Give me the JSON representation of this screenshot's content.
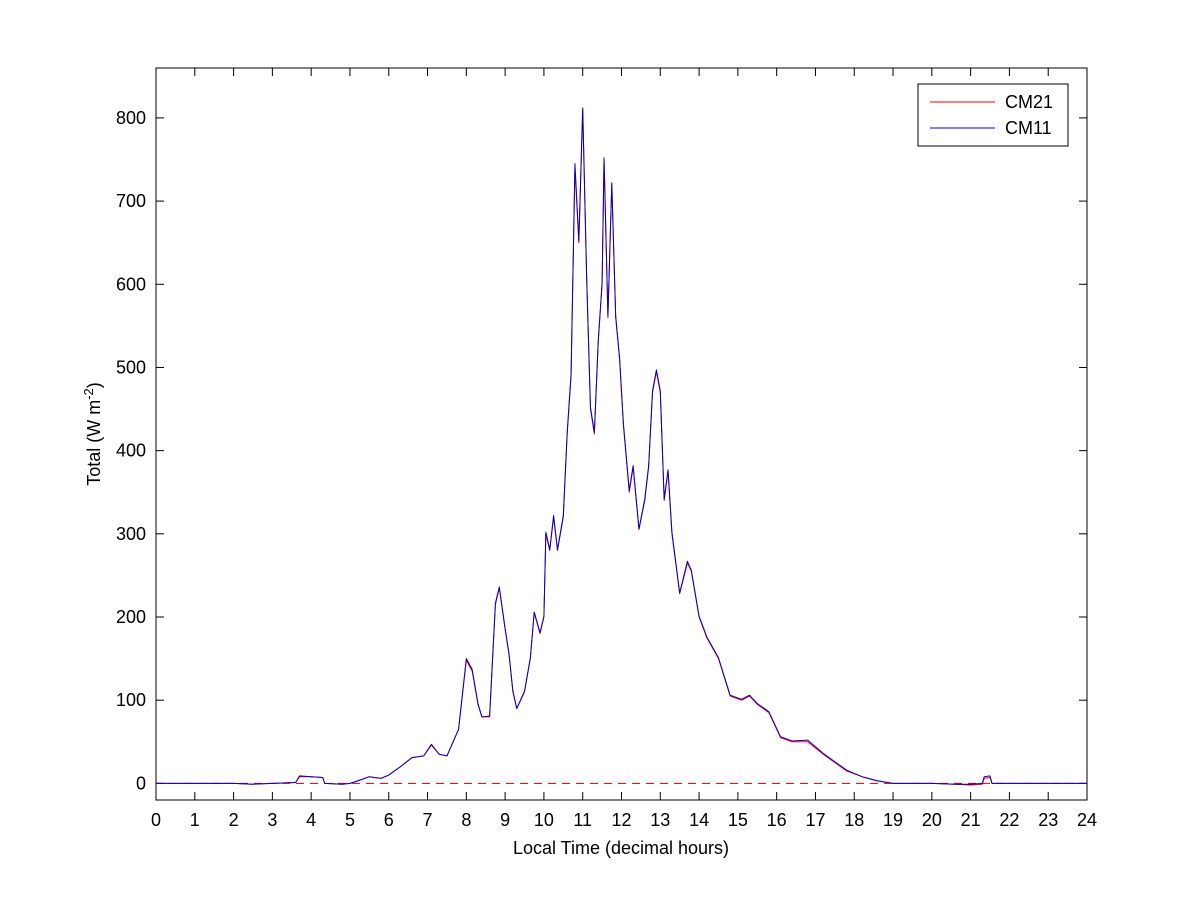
{
  "chart_data": {
    "type": "line",
    "title": "",
    "xlabel": "Local Time (decimal hours)",
    "ylabel": "Total (W m",
    "ylabel_sup": "-2",
    "ylabel_close": ")",
    "xlim": [
      0,
      24
    ],
    "ylim": [
      -20,
      860
    ],
    "xticks": [
      0,
      1,
      2,
      3,
      4,
      5,
      6,
      7,
      8,
      9,
      10,
      11,
      12,
      13,
      14,
      15,
      16,
      17,
      18,
      19,
      20,
      21,
      22,
      23,
      24
    ],
    "yticks": [
      0,
      100,
      200,
      300,
      400,
      500,
      600,
      700,
      800
    ],
    "grid": false,
    "legend_position": "top-right",
    "zero_reference_line": {
      "y": 0,
      "style": "dashed",
      "color": "#cc0000"
    },
    "series": [
      {
        "name": "CM21",
        "color": "#ff0000",
        "points": [
          [
            0,
            0
          ],
          [
            1,
            0
          ],
          [
            2,
            0
          ],
          [
            2.5,
            -1
          ],
          [
            3,
            0
          ],
          [
            3.6,
            1
          ],
          [
            3.7,
            8
          ],
          [
            4.0,
            8
          ],
          [
            4.3,
            7
          ],
          [
            4.35,
            0
          ],
          [
            4.8,
            -1
          ],
          [
            5.0,
            0
          ],
          [
            5.2,
            3
          ],
          [
            5.5,
            8
          ],
          [
            5.8,
            6
          ],
          [
            6.0,
            10
          ],
          [
            6.3,
            20
          ],
          [
            6.6,
            31
          ],
          [
            6.9,
            33
          ],
          [
            7.1,
            46
          ],
          [
            7.3,
            35
          ],
          [
            7.5,
            33
          ],
          [
            7.8,
            65
          ],
          [
            8.0,
            148
          ],
          [
            8.15,
            135
          ],
          [
            8.3,
            95
          ],
          [
            8.4,
            80
          ],
          [
            8.6,
            80
          ],
          [
            8.75,
            215
          ],
          [
            8.85,
            235
          ],
          [
            9.0,
            185
          ],
          [
            9.1,
            155
          ],
          [
            9.2,
            110
          ],
          [
            9.3,
            90
          ],
          [
            9.5,
            110
          ],
          [
            9.65,
            150
          ],
          [
            9.75,
            205
          ],
          [
            9.9,
            180
          ],
          [
            10.0,
            200
          ],
          [
            10.05,
            300
          ],
          [
            10.15,
            280
          ],
          [
            10.25,
            320
          ],
          [
            10.35,
            280
          ],
          [
            10.5,
            320
          ],
          [
            10.6,
            420
          ],
          [
            10.7,
            490
          ],
          [
            10.8,
            740
          ],
          [
            10.9,
            650
          ],
          [
            11.0,
            810
          ],
          [
            11.1,
            610
          ],
          [
            11.2,
            450
          ],
          [
            11.3,
            420
          ],
          [
            11.4,
            530
          ],
          [
            11.5,
            600
          ],
          [
            11.55,
            750
          ],
          [
            11.65,
            560
          ],
          [
            11.75,
            720
          ],
          [
            11.85,
            560
          ],
          [
            11.95,
            510
          ],
          [
            12.05,
            430
          ],
          [
            12.2,
            350
          ],
          [
            12.3,
            380
          ],
          [
            12.45,
            305
          ],
          [
            12.6,
            340
          ],
          [
            12.7,
            380
          ],
          [
            12.8,
            470
          ],
          [
            12.9,
            495
          ],
          [
            13.0,
            470
          ],
          [
            13.1,
            340
          ],
          [
            13.2,
            375
          ],
          [
            13.3,
            300
          ],
          [
            13.5,
            228
          ],
          [
            13.7,
            265
          ],
          [
            13.8,
            255
          ],
          [
            14.0,
            200
          ],
          [
            14.2,
            175
          ],
          [
            14.5,
            150
          ],
          [
            14.8,
            105
          ],
          [
            15.1,
            100
          ],
          [
            15.3,
            105
          ],
          [
            15.5,
            95
          ],
          [
            15.8,
            85
          ],
          [
            16.1,
            55
          ],
          [
            16.4,
            50
          ],
          [
            16.8,
            50
          ],
          [
            17.2,
            35
          ],
          [
            17.5,
            25
          ],
          [
            17.8,
            15
          ],
          [
            18.2,
            8
          ],
          [
            18.6,
            3
          ],
          [
            19.0,
            0
          ],
          [
            20.0,
            0
          ],
          [
            20.6,
            -1
          ],
          [
            21.0,
            -2
          ],
          [
            21.3,
            -1
          ],
          [
            21.35,
            6
          ],
          [
            21.5,
            7
          ],
          [
            21.55,
            0
          ],
          [
            22,
            0
          ],
          [
            23,
            0
          ],
          [
            24,
            0
          ]
        ]
      },
      {
        "name": "CM11",
        "color": "#0000cc",
        "points": [
          [
            0,
            0
          ],
          [
            1,
            0
          ],
          [
            2,
            0
          ],
          [
            2.5,
            -1
          ],
          [
            3,
            0
          ],
          [
            3.6,
            1
          ],
          [
            3.7,
            9
          ],
          [
            4.0,
            8
          ],
          [
            4.3,
            7
          ],
          [
            4.35,
            0
          ],
          [
            4.8,
            -1
          ],
          [
            5.0,
            0
          ],
          [
            5.2,
            3
          ],
          [
            5.5,
            8
          ],
          [
            5.8,
            6
          ],
          [
            6.0,
            10
          ],
          [
            6.3,
            20
          ],
          [
            6.6,
            31
          ],
          [
            6.9,
            33
          ],
          [
            7.1,
            47
          ],
          [
            7.3,
            35
          ],
          [
            7.5,
            33
          ],
          [
            7.8,
            65
          ],
          [
            8.0,
            150
          ],
          [
            8.15,
            137
          ],
          [
            8.3,
            96
          ],
          [
            8.4,
            80
          ],
          [
            8.6,
            81
          ],
          [
            8.75,
            217
          ],
          [
            8.85,
            236
          ],
          [
            9.0,
            186
          ],
          [
            9.1,
            156
          ],
          [
            9.2,
            111
          ],
          [
            9.3,
            90
          ],
          [
            9.5,
            111
          ],
          [
            9.65,
            151
          ],
          [
            9.75,
            206
          ],
          [
            9.9,
            181
          ],
          [
            10.0,
            201
          ],
          [
            10.05,
            302
          ],
          [
            10.15,
            281
          ],
          [
            10.25,
            322
          ],
          [
            10.35,
            281
          ],
          [
            10.5,
            322
          ],
          [
            10.6,
            422
          ],
          [
            10.7,
            492
          ],
          [
            10.8,
            745
          ],
          [
            10.9,
            652
          ],
          [
            11.0,
            812
          ],
          [
            11.1,
            612
          ],
          [
            11.2,
            452
          ],
          [
            11.3,
            422
          ],
          [
            11.4,
            532
          ],
          [
            11.5,
            602
          ],
          [
            11.55,
            752
          ],
          [
            11.65,
            562
          ],
          [
            11.75,
            722
          ],
          [
            11.85,
            562
          ],
          [
            11.95,
            512
          ],
          [
            12.05,
            432
          ],
          [
            12.2,
            352
          ],
          [
            12.3,
            382
          ],
          [
            12.45,
            306
          ],
          [
            12.6,
            342
          ],
          [
            12.7,
            382
          ],
          [
            12.8,
            472
          ],
          [
            12.9,
            497
          ],
          [
            13.0,
            472
          ],
          [
            13.1,
            342
          ],
          [
            13.2,
            377
          ],
          [
            13.3,
            302
          ],
          [
            13.5,
            229
          ],
          [
            13.7,
            267
          ],
          [
            13.8,
            256
          ],
          [
            14.0,
            201
          ],
          [
            14.2,
            176
          ],
          [
            14.5,
            151
          ],
          [
            14.8,
            106
          ],
          [
            15.1,
            101
          ],
          [
            15.3,
            106
          ],
          [
            15.5,
            96
          ],
          [
            15.8,
            86
          ],
          [
            16.1,
            56
          ],
          [
            16.4,
            51
          ],
          [
            16.8,
            52
          ],
          [
            17.2,
            36
          ],
          [
            17.5,
            26
          ],
          [
            17.8,
            16
          ],
          [
            18.2,
            8
          ],
          [
            18.6,
            3
          ],
          [
            19.0,
            0
          ],
          [
            20.0,
            0
          ],
          [
            20.6,
            -1
          ],
          [
            21.0,
            -1
          ],
          [
            21.3,
            0
          ],
          [
            21.35,
            8
          ],
          [
            21.5,
            9
          ],
          [
            21.55,
            0
          ],
          [
            22,
            0
          ],
          [
            23,
            0
          ],
          [
            24,
            0
          ]
        ]
      }
    ]
  }
}
